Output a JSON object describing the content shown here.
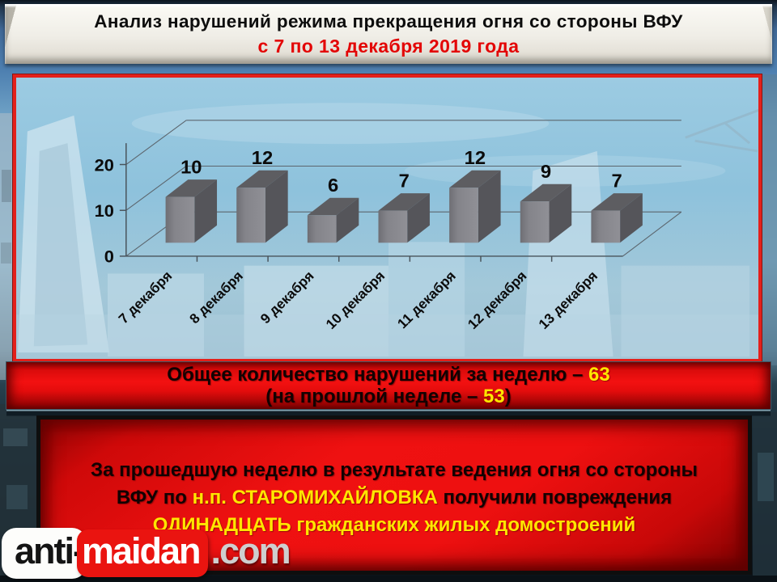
{
  "header": {
    "title_line1": "Анализ нарушений режима прекращения огня со стороны ВФУ",
    "title_line2": "с 7 по 13 декабря 2019 года"
  },
  "chart_data": {
    "type": "bar",
    "style": "3d-perspective",
    "categories": [
      "7 декабря",
      "8 декабря",
      "9 декабря",
      "10 декабря",
      "11 декабря",
      "12 декабря",
      "13 декабря"
    ],
    "values": [
      10,
      12,
      6,
      7,
      12,
      9,
      7
    ],
    "title": "",
    "xlabel": "",
    "ylabel": "",
    "yticks": [
      0,
      10,
      20
    ],
    "ylim": [
      0,
      20
    ],
    "grid": "horizontal back-wall gridlines",
    "legend": "none",
    "bar_colors": {
      "front": "#85858a",
      "top": "#5d5d61",
      "side": "#55555a"
    }
  },
  "summary_banner": {
    "line1_prefix": "Общее количество нарушений за неделю – ",
    "line1_value": "63",
    "line2_prefix": "(на прошлой неделе – ",
    "line2_value": "53",
    "line2_suffix": ")"
  },
  "damage_box": {
    "line1": "За прошедшую неделю в результате ведения огня со стороны",
    "line2_part1": "ВФУ по ",
    "line2_highlight": "н.п. СТАРОМИХАЙЛОВКА",
    "line2_part2": " получили повреждения",
    "line3": "ОДИНАДЦАТЬ гражданских жилых домостроений"
  },
  "watermark": {
    "part1": "anti-",
    "part2": "maidan",
    "part3": ".com"
  },
  "colors": {
    "title_red": "#e30505",
    "accent_yellow": "#ffe600",
    "panel_border_red": "#e3201b",
    "banner_red": "#ef1111",
    "bar_gray_front": "#85858a"
  }
}
